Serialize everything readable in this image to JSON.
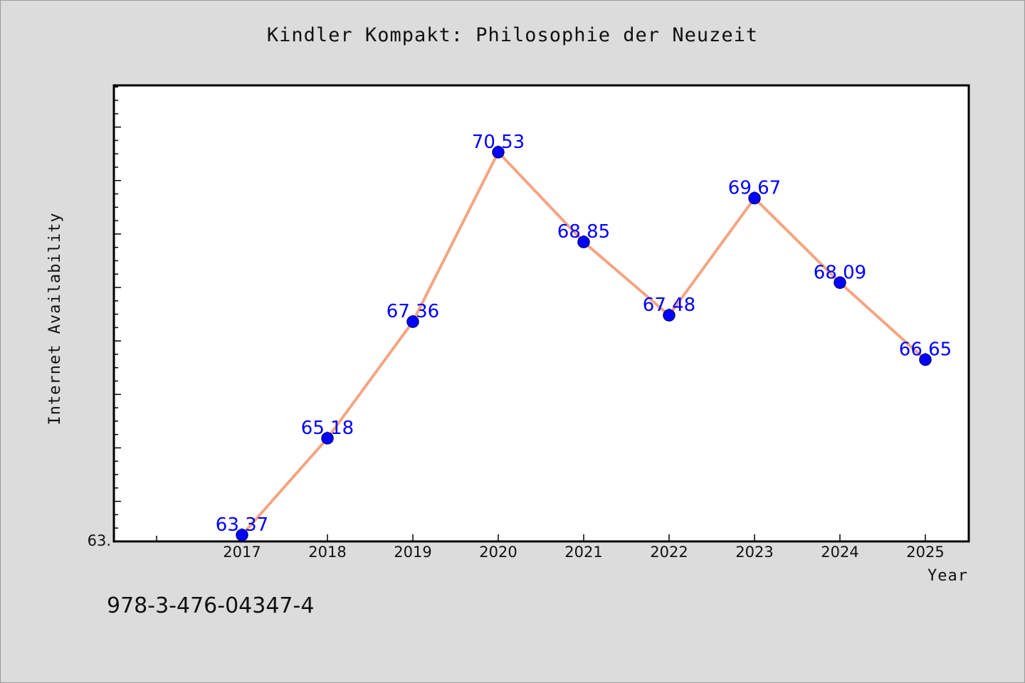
{
  "chart_data": {
    "type": "line",
    "title": "Kindler Kompakt: Philosophie der Neuzeit",
    "xlabel": "Year",
    "ylabel": "Internet Availability",
    "x": [
      "2017",
      "2018",
      "2019",
      "2020",
      "2021",
      "2022",
      "2023",
      "2024",
      "2025"
    ],
    "series": [
      {
        "values": [
          63.37,
          65.18,
          67.36,
          70.53,
          68.85,
          67.48,
          69.67,
          68.09,
          66.65
        ],
        "labels": [
          "63.37",
          "65.18",
          "67.36",
          "70.53",
          "68.85",
          "67.48",
          "69.67",
          "68.09",
          "66.65"
        ]
      }
    ],
    "y_tick_labels": [
      "63."
    ],
    "ylim": [
      63.25,
      71.78
    ],
    "grid": false,
    "colors": {
      "line": "#f4a582",
      "marker": "#0000ff",
      "data_label": "#0000ff"
    }
  },
  "footer": {
    "isbn": "978-3-476-04347-4"
  }
}
